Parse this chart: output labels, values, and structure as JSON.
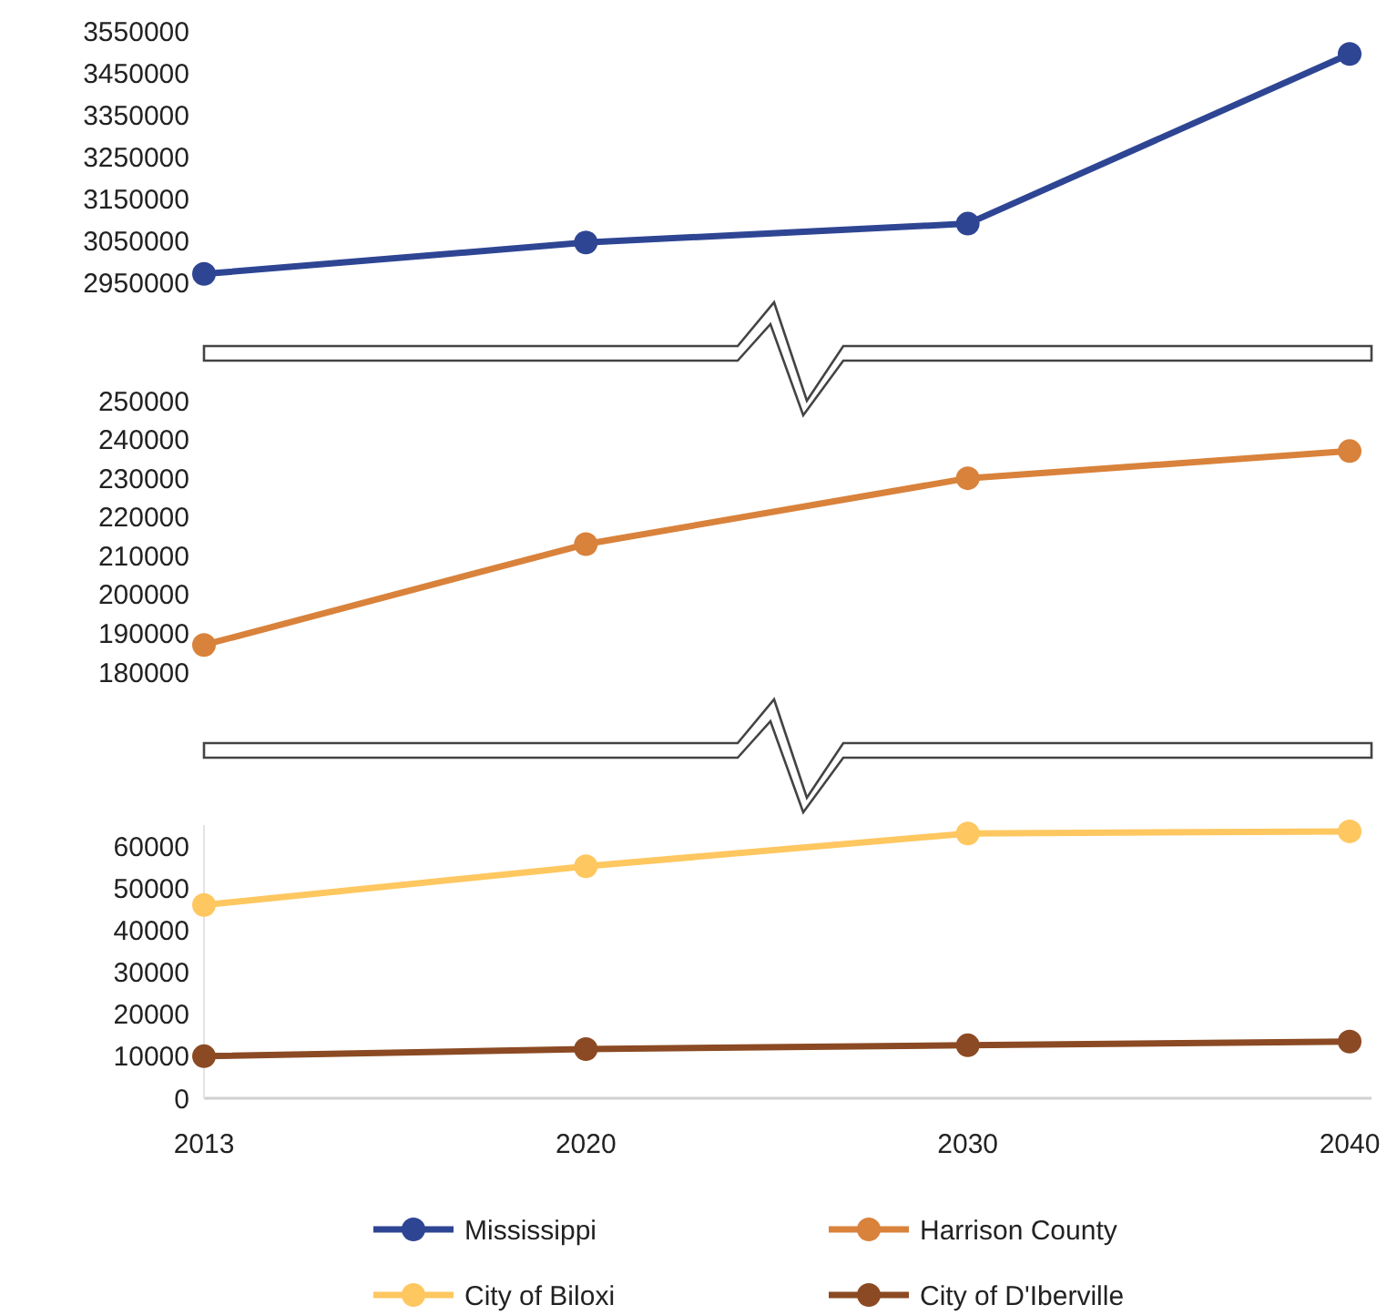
{
  "chart_data": [
    {
      "type": "line",
      "categories": [
        "2013",
        "2020",
        "2030",
        "2040"
      ],
      "ylim": [
        2950000,
        3550000
      ],
      "yticks": [
        2950000,
        3050000,
        3150000,
        3250000,
        3350000,
        3450000,
        3550000
      ],
      "tick_labels": "y",
      "grid": false,
      "marker": "circle",
      "line_style": "solid",
      "series": [
        {
          "name": "Mississippi",
          "color": "#2e4593",
          "values": [
            2970000,
            3045000,
            3090000,
            3495000
          ]
        }
      ]
    },
    {
      "type": "line",
      "categories": [
        "2013",
        "2020",
        "2030",
        "2040"
      ],
      "ylim": [
        180000,
        250000
      ],
      "yticks": [
        180000,
        190000,
        200000,
        210000,
        220000,
        230000,
        240000,
        250000
      ],
      "tick_labels": "y",
      "grid": false,
      "marker": "circle",
      "line_style": "solid",
      "series": [
        {
          "name": "Harrison County",
          "color": "#d9823b",
          "values": [
            187000,
            213000,
            230000,
            237000
          ]
        }
      ]
    },
    {
      "type": "line",
      "categories": [
        "2013",
        "2020",
        "2030",
        "2040"
      ],
      "ylim": [
        0,
        65000
      ],
      "yticks": [
        0,
        10000,
        20000,
        30000,
        40000,
        50000,
        60000
      ],
      "grid": false,
      "marker": "circle",
      "line_style": "solid",
      "legend": "bottom",
      "series": [
        {
          "name": "City of Biloxi",
          "color": "#fec760",
          "values": [
            46000,
            55200,
            63000,
            63500
          ]
        },
        {
          "name": "City of D'Iberville",
          "color": "#8b4a23",
          "values": [
            10000,
            11700,
            12600,
            13500
          ]
        }
      ]
    }
  ]
}
